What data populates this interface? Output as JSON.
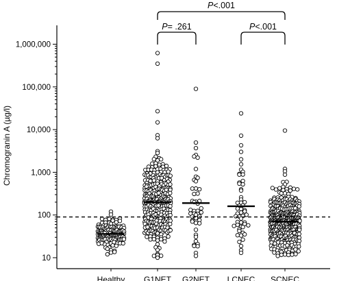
{
  "chart_data": {
    "type": "scatter",
    "ylabel": "Chromogranin A (µg/l)",
    "xlabel": "",
    "title": "",
    "y_scale": "log",
    "ylim": [
      9,
      2000000
    ],
    "y_ticks": [
      10,
      100,
      1000,
      10000,
      100000,
      1000000
    ],
    "y_tick_labels": [
      "10",
      "100",
      "1,000",
      "10,000",
      "100,000",
      "1,000,000"
    ],
    "reference_line": 90,
    "grid": false,
    "categories": [
      "Healthy",
      "G1NET",
      "G2NET",
      "LCNEC",
      "SCNEC"
    ],
    "groups": [
      {
        "name": "Healthy",
        "median": 36,
        "n": 150,
        "min": 12,
        "max": 120,
        "outliers": []
      },
      {
        "name": "G1NET",
        "median": 200,
        "n": 330,
        "min": 10,
        "max": 27000,
        "outliers": [
          350000,
          620000
        ]
      },
      {
        "name": "G2NET",
        "median": 190,
        "n": 48,
        "min": 11,
        "max": 90000,
        "outliers": []
      },
      {
        "name": "LCNEC",
        "median": 160,
        "n": 55,
        "min": 13,
        "max": 24000,
        "outliers": []
      },
      {
        "name": "SCNEC",
        "median": 70,
        "n": 420,
        "min": 11,
        "max": 9500,
        "outliers": []
      }
    ],
    "comparisons": [
      {
        "from": "G1NET",
        "to": "G2NET",
        "label_italic": "P",
        "label_rest": "= .261"
      },
      {
        "from": "LCNEC",
        "to": "SCNEC",
        "label_italic": "P",
        "label_rest": "<.001"
      },
      {
        "from": "G1NET",
        "to": "SCNEC",
        "label_italic": "P",
        "label_rest": "<.001"
      }
    ]
  }
}
